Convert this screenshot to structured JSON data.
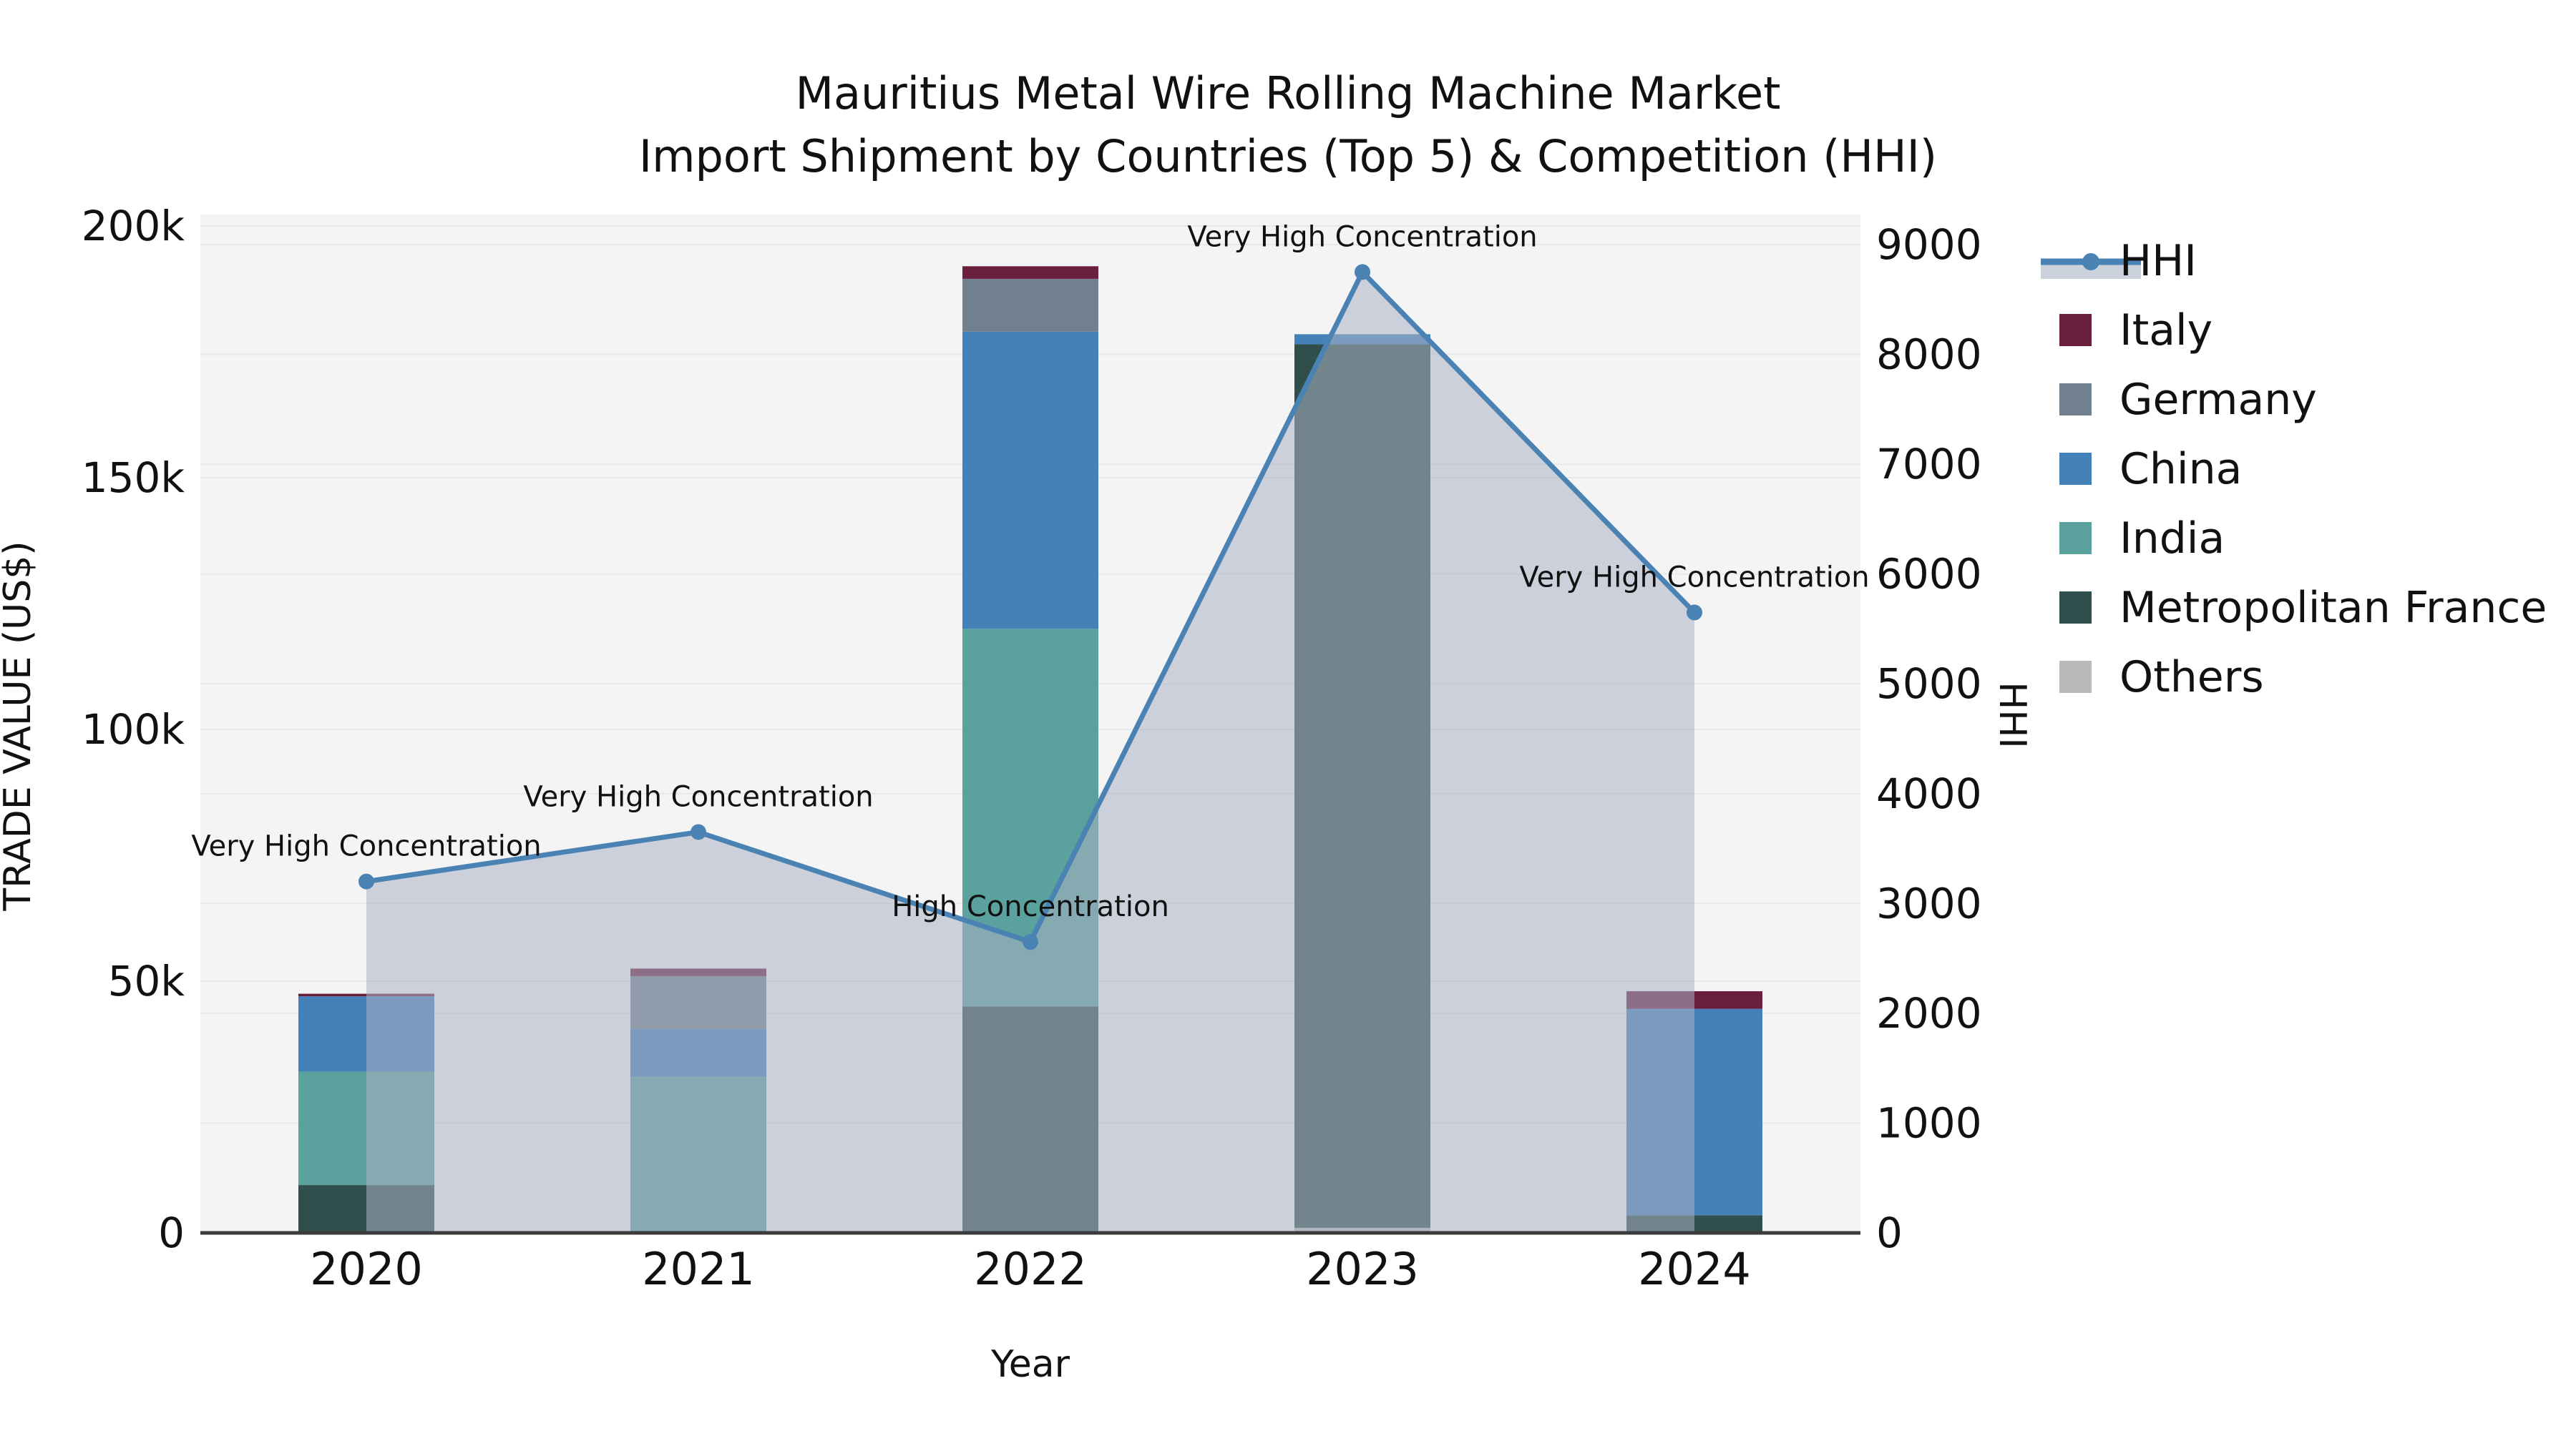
{
  "chart_data": {
    "type": "bar+line",
    "title": "Mauritius Metal Wire Rolling Machine Market",
    "subtitle": "Import Shipment by Countries (Top 5) & Competition (HHI)",
    "xlabel": "Year",
    "ylabel_left": "TRADE VALUE (US$)",
    "ylabel_right": "HHI",
    "categories": [
      "2020",
      "2021",
      "2022",
      "2023",
      "2024"
    ],
    "left_axis": {
      "ticks": [
        {
          "label": "0",
          "value": 0
        },
        {
          "label": "50k",
          "value": 50000
        },
        {
          "label": "100k",
          "value": 100000
        },
        {
          "label": "150k",
          "value": 150000
        },
        {
          "label": "200k",
          "value": 200000
        }
      ],
      "max": 200000
    },
    "right_axis": {
      "ticks": [
        {
          "label": "0",
          "value": 0
        },
        {
          "label": "1000",
          "value": 1000
        },
        {
          "label": "2000",
          "value": 2000
        },
        {
          "label": "3000",
          "value": 3000
        },
        {
          "label": "4000",
          "value": 4000
        },
        {
          "label": "5000",
          "value": 5000
        },
        {
          "label": "6000",
          "value": 6000
        },
        {
          "label": "7000",
          "value": 7000
        },
        {
          "label": "8000",
          "value": 8000
        },
        {
          "label": "9000",
          "value": 9000
        }
      ],
      "max": 9000
    },
    "series": [
      {
        "name": "Others",
        "color": "#b9babc",
        "values": [
          0,
          0,
          0,
          1000,
          0
        ]
      },
      {
        "name": "Metropolitan France",
        "color": "#2f4e4c",
        "values": [
          9500,
          0,
          45000,
          175500,
          3500
        ]
      },
      {
        "name": "India",
        "color": "#5ba19d",
        "values": [
          22500,
          31000,
          75000,
          0,
          0
        ]
      },
      {
        "name": "China",
        "color": "#4381b8",
        "values": [
          15000,
          9500,
          59000,
          2000,
          41000
        ]
      },
      {
        "name": "Germany",
        "color": "#71808f",
        "values": [
          0,
          10500,
          10500,
          0,
          0
        ]
      },
      {
        "name": "Italy",
        "color": "#691e3e",
        "values": [
          500,
          1500,
          2500,
          0,
          3500
        ]
      }
    ],
    "hhi": {
      "name": "HHI",
      "line_color": "#4a82b4",
      "area_color": "rgba(170,179,195,0.55)",
      "values": [
        3200,
        3650,
        2650,
        8750,
        5650
      ],
      "annotations": [
        "Very High Concentration",
        "Very High Concentration",
        "High Concentration",
        "Very High Concentration",
        "Very High Concentration"
      ]
    },
    "legend": [
      {
        "label": "HHI",
        "type": "line",
        "color": "#4a82b4"
      },
      {
        "label": "Italy",
        "type": "patch",
        "color": "#691e3e"
      },
      {
        "label": "Germany",
        "type": "patch",
        "color": "#71808f"
      },
      {
        "label": "China",
        "type": "patch",
        "color": "#4381b8"
      },
      {
        "label": "India",
        "type": "patch",
        "color": "#5ba19d"
      },
      {
        "label": "Metropolitan France",
        "type": "patch",
        "color": "#2f4e4c"
      },
      {
        "label": "Others",
        "type": "patch",
        "color": "#b9babc"
      }
    ],
    "style": {
      "plot_bg": "#f4f4f5",
      "grid_color": "#e7e8ea",
      "axis_line_color": "#3b3b3b",
      "text_color": "#111111"
    }
  }
}
